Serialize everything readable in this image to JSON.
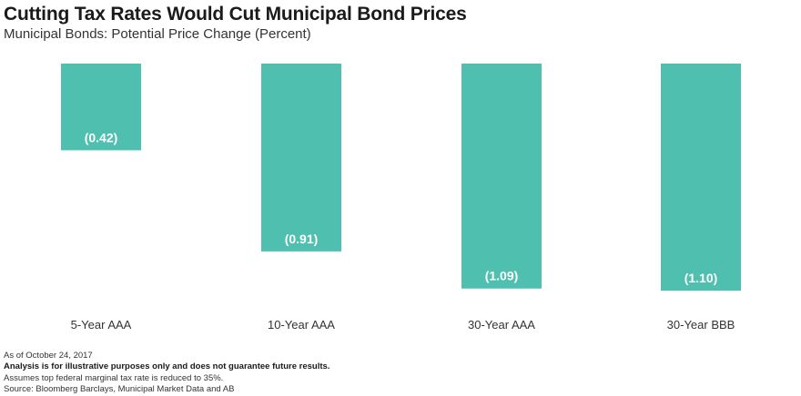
{
  "chart_data": {
    "type": "bar",
    "title": "Cutting Tax Rates Would Cut Municipal Bond Prices",
    "subtitle": "Municipal Bonds: Potential Price Change (Percent)",
    "categories": [
      "5-Year AAA",
      "10-Year AAA",
      "30-Year AAA",
      "30-Year BBB"
    ],
    "values": [
      -0.42,
      -0.91,
      -1.09,
      -1.1
    ],
    "value_labels": [
      "(0.42)",
      "(0.91)",
      "(1.09)",
      "(1.10)"
    ],
    "ylim": [
      -1.1,
      0
    ],
    "grid": false,
    "bar_color": "#4fbfb0",
    "label_color": "#ffffff"
  },
  "notes": {
    "as_of": "As of October 24, 2017",
    "disclaimer": "Analysis is for illustrative purposes only and does not guarantee future results.",
    "assumption": "Assumes top federal marginal tax rate is reduced to 35%.",
    "source": "Source: Bloomberg Barclays, Municipal Market Data and AB"
  }
}
